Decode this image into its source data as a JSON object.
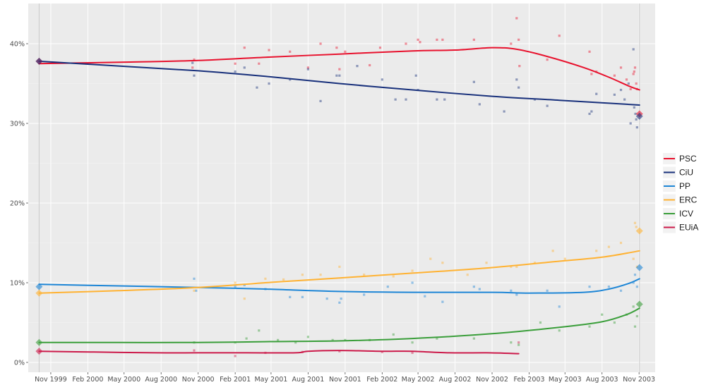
{
  "chart_data": {
    "type": "line",
    "title": "",
    "xlabel": "",
    "ylabel": "",
    "ylim": [
      0,
      0.44
    ],
    "yticks": [
      0,
      0.1,
      0.2,
      0.3,
      0.4
    ],
    "ytick_labels": [
      "0%",
      "10%",
      "20%",
      "30%",
      "40%"
    ],
    "xticks": [
      "1999-11-15",
      "2000-02-15",
      "2000-05-15",
      "2000-08-15",
      "2000-11-15",
      "2001-02-15",
      "2001-05-15",
      "2001-08-15",
      "2001-11-15",
      "2002-02-15",
      "2002-05-15",
      "2002-08-15",
      "2002-11-15",
      "2003-02-15",
      "2003-05-15",
      "2003-08-15",
      "2003-11-15"
    ],
    "xtick_labels": [
      "Nov 1999",
      "Feb 2000",
      "May 2000",
      "Aug 2000",
      "Nov 2000",
      "Feb 2001",
      "May 2001",
      "Aug 2001",
      "Nov 2001",
      "Feb 2002",
      "May 2002",
      "Aug 2002",
      "Nov 2002",
      "Feb 2003",
      "May 2003",
      "Aug 2003",
      "Nov 2003"
    ],
    "xlim": [
      "1999-09-20",
      "2003-12-25"
    ],
    "election_lines": [
      "1999-10-17",
      "2003-11-16"
    ],
    "grid": true,
    "legend_position": "right",
    "series": [
      {
        "name": "PSC",
        "color": "#e8112d",
        "trend": [
          [
            "1999-10-17",
            0.375
          ],
          [
            "2000-06-01",
            0.377
          ],
          [
            "2000-11-15",
            0.379
          ],
          [
            "2001-05-01",
            0.383
          ],
          [
            "2001-11-01",
            0.387
          ],
          [
            "2002-05-01",
            0.391
          ],
          [
            "2002-08-15",
            0.392
          ],
          [
            "2002-11-15",
            0.395
          ],
          [
            "2003-01-15",
            0.393
          ],
          [
            "2003-04-01",
            0.384
          ],
          [
            "2003-07-01",
            0.37
          ],
          [
            "2003-09-01",
            0.358
          ],
          [
            "2003-10-20",
            0.347
          ],
          [
            "2003-11-16",
            0.342
          ]
        ],
        "polls": [
          [
            "2000-11-01",
            0.37
          ],
          [
            "2000-11-05",
            0.38
          ],
          [
            "2001-02-15",
            0.375
          ],
          [
            "2001-03-10",
            0.395
          ],
          [
            "2001-04-15",
            0.375
          ],
          [
            "2001-05-10",
            0.392
          ],
          [
            "2001-07-01",
            0.39
          ],
          [
            "2001-08-15",
            0.37
          ],
          [
            "2001-09-15",
            0.4
          ],
          [
            "2001-10-25",
            0.395
          ],
          [
            "2001-11-01",
            0.368
          ],
          [
            "2001-11-15",
            0.39
          ],
          [
            "2002-01-15",
            0.373
          ],
          [
            "2002-02-10",
            0.395
          ],
          [
            "2002-04-15",
            0.4
          ],
          [
            "2002-05-15",
            0.405
          ],
          [
            "2002-05-20",
            0.402
          ],
          [
            "2002-07-01",
            0.405
          ],
          [
            "2002-07-15",
            0.405
          ],
          [
            "2002-10-01",
            0.405
          ],
          [
            "2003-01-01",
            0.4
          ],
          [
            "2003-01-15",
            0.432
          ],
          [
            "2003-01-20",
            0.405
          ],
          [
            "2003-01-22",
            0.372
          ],
          [
            "2003-04-01",
            0.38
          ],
          [
            "2003-05-01",
            0.41
          ],
          [
            "2003-07-15",
            0.39
          ],
          [
            "2003-07-20",
            0.362
          ],
          [
            "2003-08-01",
            0.365
          ],
          [
            "2003-09-15",
            0.36
          ],
          [
            "2003-10-01",
            0.37
          ],
          [
            "2003-10-15",
            0.355
          ],
          [
            "2003-10-25",
            0.343
          ],
          [
            "2003-11-01",
            0.362
          ],
          [
            "2003-11-03",
            0.365
          ],
          [
            "2003-11-05",
            0.37
          ],
          [
            "2003-11-08",
            0.35
          ],
          [
            "2003-11-10",
            0.343
          ]
        ],
        "results": [
          [
            "1999-10-17",
            0.378
          ],
          [
            "2003-11-16",
            0.312
          ]
        ]
      },
      {
        "name": "CiU",
        "color": "#18307b",
        "trend": [
          [
            "1999-10-17",
            0.378
          ],
          [
            "2000-05-01",
            0.372
          ],
          [
            "2000-11-15",
            0.366
          ],
          [
            "2001-05-01",
            0.359
          ],
          [
            "2001-11-01",
            0.35
          ],
          [
            "2002-05-01",
            0.342
          ],
          [
            "2002-11-15",
            0.334
          ],
          [
            "2003-05-01",
            0.329
          ],
          [
            "2003-11-16",
            0.323
          ]
        ],
        "polls": [
          [
            "2000-11-01",
            0.376
          ],
          [
            "2000-11-05",
            0.36
          ],
          [
            "2001-02-15",
            0.365
          ],
          [
            "2001-03-10",
            0.37
          ],
          [
            "2001-04-10",
            0.345
          ],
          [
            "2001-05-10",
            0.35
          ],
          [
            "2001-07-01",
            0.355
          ],
          [
            "2001-08-15",
            0.368
          ],
          [
            "2001-09-15",
            0.328
          ],
          [
            "2001-10-25",
            0.36
          ],
          [
            "2001-11-01",
            0.36
          ],
          [
            "2001-12-15",
            0.372
          ],
          [
            "2002-02-15",
            0.355
          ],
          [
            "2002-03-20",
            0.33
          ],
          [
            "2002-04-15",
            0.33
          ],
          [
            "2002-05-10",
            0.36
          ],
          [
            "2002-05-15",
            0.342
          ],
          [
            "2002-07-01",
            0.33
          ],
          [
            "2002-07-20",
            0.33
          ],
          [
            "2002-10-01",
            0.352
          ],
          [
            "2002-10-15",
            0.324
          ],
          [
            "2002-12-15",
            0.315
          ],
          [
            "2003-01-15",
            0.355
          ],
          [
            "2003-01-20",
            0.345
          ],
          [
            "2003-03-01",
            0.33
          ],
          [
            "2003-04-01",
            0.322
          ],
          [
            "2003-07-15",
            0.312
          ],
          [
            "2003-07-20",
            0.315
          ],
          [
            "2003-08-01",
            0.337
          ],
          [
            "2003-09-15",
            0.336
          ],
          [
            "2003-10-01",
            0.342
          ],
          [
            "2003-10-10",
            0.33
          ],
          [
            "2003-10-20",
            0.35
          ],
          [
            "2003-10-25",
            0.3
          ],
          [
            "2003-11-01",
            0.393
          ],
          [
            "2003-11-03",
            0.32
          ],
          [
            "2003-11-06",
            0.312
          ],
          [
            "2003-11-08",
            0.305
          ],
          [
            "2003-11-10",
            0.295
          ]
        ],
        "results": [
          [
            "1999-10-17",
            0.378
          ],
          [
            "2003-11-16",
            0.309
          ]
        ]
      },
      {
        "name": "PP",
        "color": "#1e86d6",
        "trend": [
          [
            "1999-10-17",
            0.098
          ],
          [
            "2000-05-01",
            0.096
          ],
          [
            "2000-11-15",
            0.094
          ],
          [
            "2001-05-01",
            0.092
          ],
          [
            "2001-11-01",
            0.089
          ],
          [
            "2002-05-01",
            0.088
          ],
          [
            "2002-11-15",
            0.088
          ],
          [
            "2003-02-15",
            0.087
          ],
          [
            "2003-07-01",
            0.088
          ],
          [
            "2003-09-01",
            0.092
          ],
          [
            "2003-10-20",
            0.099
          ],
          [
            "2003-11-16",
            0.105
          ]
        ],
        "polls": [
          [
            "2000-11-05",
            0.105
          ],
          [
            "2000-11-10",
            0.09
          ],
          [
            "2001-02-15",
            0.095
          ],
          [
            "2001-03-10",
            0.097
          ],
          [
            "2001-05-01",
            0.092
          ],
          [
            "2001-07-01",
            0.082
          ],
          [
            "2001-08-01",
            0.082
          ],
          [
            "2001-10-01",
            0.08
          ],
          [
            "2001-11-01",
            0.075
          ],
          [
            "2001-11-05",
            0.08
          ],
          [
            "2002-01-01",
            0.085
          ],
          [
            "2002-03-01",
            0.095
          ],
          [
            "2002-05-01",
            0.1
          ],
          [
            "2002-06-01",
            0.083
          ],
          [
            "2002-07-15",
            0.076
          ],
          [
            "2002-10-01",
            0.095
          ],
          [
            "2002-10-15",
            0.092
          ],
          [
            "2003-01-01",
            0.09
          ],
          [
            "2003-01-15",
            0.085
          ],
          [
            "2003-04-01",
            0.09
          ],
          [
            "2003-05-01",
            0.07
          ],
          [
            "2003-07-15",
            0.095
          ],
          [
            "2003-09-01",
            0.095
          ],
          [
            "2003-10-01",
            0.09
          ],
          [
            "2003-11-01",
            0.1
          ],
          [
            "2003-11-05",
            0.11
          ],
          [
            "2003-11-10",
            0.095
          ]
        ],
        "results": [
          [
            "1999-10-17",
            0.095
          ],
          [
            "2003-11-16",
            0.119
          ]
        ]
      },
      {
        "name": "ERC",
        "color": "#ffb232",
        "trend": [
          [
            "1999-10-17",
            0.087
          ],
          [
            "2000-05-01",
            0.09
          ],
          [
            "2000-11-15",
            0.094
          ],
          [
            "2001-05-01",
            0.1
          ],
          [
            "2001-11-01",
            0.106
          ],
          [
            "2002-05-01",
            0.112
          ],
          [
            "2002-11-15",
            0.119
          ],
          [
            "2003-05-01",
            0.127
          ],
          [
            "2003-08-15",
            0.132
          ],
          [
            "2003-11-16",
            0.14
          ]
        ],
        "polls": [
          [
            "2000-11-05",
            0.09
          ],
          [
            "2001-02-15",
            0.1
          ],
          [
            "2001-03-10",
            0.08
          ],
          [
            "2001-05-01",
            0.105
          ],
          [
            "2001-06-15",
            0.104
          ],
          [
            "2001-08-01",
            0.11
          ],
          [
            "2001-09-15",
            0.11
          ],
          [
            "2001-11-01",
            0.12
          ],
          [
            "2002-01-01",
            0.11
          ],
          [
            "2002-03-15",
            0.108
          ],
          [
            "2002-05-01",
            0.115
          ],
          [
            "2002-06-15",
            0.13
          ],
          [
            "2002-07-15",
            0.125
          ],
          [
            "2002-09-15",
            0.11
          ],
          [
            "2002-11-01",
            0.125
          ],
          [
            "2003-01-01",
            0.12
          ],
          [
            "2003-01-15",
            0.12
          ],
          [
            "2003-03-01",
            0.125
          ],
          [
            "2003-04-15",
            0.14
          ],
          [
            "2003-05-15",
            0.13
          ],
          [
            "2003-08-01",
            0.14
          ],
          [
            "2003-09-01",
            0.145
          ],
          [
            "2003-10-01",
            0.15
          ],
          [
            "2003-11-01",
            0.13
          ],
          [
            "2003-11-05",
            0.175
          ],
          [
            "2003-11-08",
            0.17
          ],
          [
            "2003-11-10",
            0.12
          ]
        ],
        "results": [
          [
            "1999-10-17",
            0.087
          ],
          [
            "2003-11-16",
            0.165
          ]
        ]
      },
      {
        "name": "ICV",
        "color": "#3a9e3a",
        "trend": [
          [
            "1999-10-17",
            0.025
          ],
          [
            "2000-05-01",
            0.025
          ],
          [
            "2000-11-15",
            0.025
          ],
          [
            "2001-05-01",
            0.026
          ],
          [
            "2001-11-01",
            0.027
          ],
          [
            "2002-05-01",
            0.03
          ],
          [
            "2002-11-15",
            0.036
          ],
          [
            "2003-05-01",
            0.044
          ],
          [
            "2003-08-15",
            0.051
          ],
          [
            "2003-10-15",
            0.06
          ],
          [
            "2003-11-16",
            0.068
          ]
        ],
        "polls": [
          [
            "2000-11-05",
            0.025
          ],
          [
            "2001-02-15",
            0.025
          ],
          [
            "2001-03-15",
            0.03
          ],
          [
            "2001-04-15",
            0.04
          ],
          [
            "2001-06-01",
            0.028
          ],
          [
            "2001-07-15",
            0.025
          ],
          [
            "2001-08-15",
            0.032
          ],
          [
            "2001-10-15",
            0.028
          ],
          [
            "2001-11-15",
            0.028
          ],
          [
            "2002-01-15",
            0.028
          ],
          [
            "2002-03-15",
            0.035
          ],
          [
            "2002-05-01",
            0.025
          ],
          [
            "2002-07-01",
            0.03
          ],
          [
            "2002-10-01",
            0.03
          ],
          [
            "2003-01-01",
            0.025
          ],
          [
            "2003-01-20",
            0.022
          ],
          [
            "2003-03-15",
            0.05
          ],
          [
            "2003-05-01",
            0.04
          ],
          [
            "2003-07-15",
            0.045
          ],
          [
            "2003-08-15",
            0.06
          ],
          [
            "2003-09-15",
            0.05
          ],
          [
            "2003-10-15",
            0.06
          ],
          [
            "2003-11-01",
            0.07
          ],
          [
            "2003-11-05",
            0.045
          ],
          [
            "2003-11-10",
            0.058
          ]
        ],
        "results": [
          [
            "1999-10-17",
            0.025
          ],
          [
            "2003-11-16",
            0.073
          ]
        ]
      },
      {
        "name": "EUiA",
        "color": "#cc1a4a",
        "trend": [
          [
            "1999-10-17",
            0.014
          ],
          [
            "2000-03-01",
            0.013
          ],
          [
            "2000-08-01",
            0.012
          ],
          [
            "2000-11-15",
            0.012
          ],
          [
            "2001-03-15",
            0.012
          ],
          [
            "2001-07-15",
            0.012
          ],
          [
            "2001-08-15",
            0.014
          ],
          [
            "2001-11-01",
            0.015
          ],
          [
            "2002-02-15",
            0.014
          ],
          [
            "2002-05-01",
            0.014
          ],
          [
            "2002-08-01",
            0.012
          ],
          [
            "2002-11-01",
            0.012
          ],
          [
            "2003-01-20",
            0.011
          ]
        ],
        "polls": [
          [
            "2000-11-05",
            0.015
          ],
          [
            "2001-02-15",
            0.008
          ],
          [
            "2001-05-01",
            0.012
          ],
          [
            "2001-08-01",
            0.013
          ],
          [
            "2001-11-01",
            0.014
          ],
          [
            "2002-02-15",
            0.013
          ],
          [
            "2002-05-01",
            0.012
          ],
          [
            "2003-01-20",
            0.025
          ]
        ],
        "results": [
          [
            "1999-10-17",
            0.014
          ]
        ]
      }
    ]
  }
}
